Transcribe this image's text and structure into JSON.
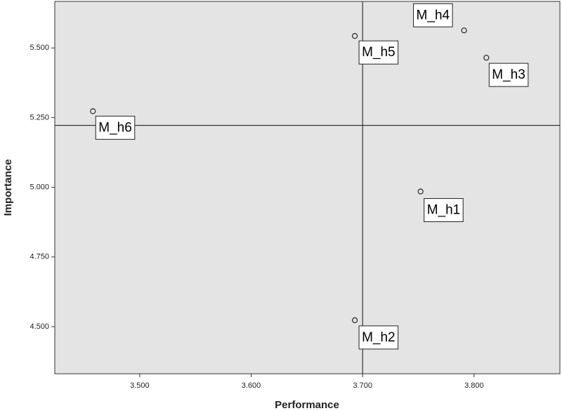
{
  "chart_data": {
    "type": "scatter",
    "x_label": "Performance",
    "y_label": "Importance",
    "labels": [
      "M_h1",
      "M_h2",
      "M_h3",
      "M_h4",
      "M_h5",
      "M_h6"
    ],
    "x": [
      3.752,
      3.693,
      3.811,
      3.791,
      3.693,
      3.458
    ],
    "values": [
      4.985,
      4.523,
      5.465,
      5.563,
      5.543,
      5.273
    ],
    "color": "#333333",
    "reference_x": 3.7,
    "reference_y": 5.222,
    "xlim": [
      3.4238,
      3.877
    ],
    "ylim": [
      4.331,
      5.667
    ],
    "xticks": [
      {
        "value": 3.5,
        "label": "3.500"
      },
      {
        "value": 3.6,
        "label": "3.600"
      },
      {
        "value": 3.7,
        "label": "3.700"
      },
      {
        "value": 3.8,
        "label": "3.800"
      }
    ],
    "yticks": [
      {
        "value": 4.5,
        "label": "4.500"
      },
      {
        "value": 4.75,
        "label": "4.750"
      },
      {
        "value": 5.0,
        "label": "5.000"
      },
      {
        "value": 5.25,
        "label": "5.250"
      },
      {
        "value": 5.5,
        "label": "5.500"
      }
    ]
  }
}
